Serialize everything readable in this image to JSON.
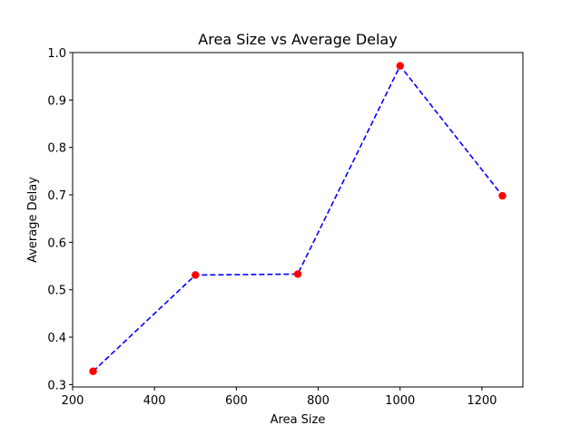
{
  "chart_data": {
    "type": "line",
    "title": "Area Size vs Average Delay",
    "xlabel": "Area Size",
    "ylabel": "Average Delay",
    "xlim": [
      200,
      1300
    ],
    "ylim": [
      0.295,
      1.0
    ],
    "x_ticks": [
      200,
      400,
      600,
      800,
      1000,
      1200
    ],
    "y_ticks": [
      0.3,
      0.4,
      0.5,
      0.6,
      0.7,
      0.8,
      0.9,
      1.0
    ],
    "x_tick_labels": [
      "200",
      "400",
      "600",
      "800",
      "1000",
      "1200"
    ],
    "y_tick_labels": [
      "0.3",
      "0.4",
      "0.5",
      "0.6",
      "0.7",
      "0.8",
      "0.9",
      "1.0"
    ],
    "grid": false,
    "series": [
      {
        "x": [
          250,
          500,
          750,
          1000,
          1250
        ],
        "y": [
          0.328,
          0.531,
          0.533,
          0.972,
          0.698
        ],
        "line_color": "#0000ff",
        "line_style": "dashed",
        "marker_color": "#ff0000",
        "marker": "circle"
      }
    ]
  }
}
